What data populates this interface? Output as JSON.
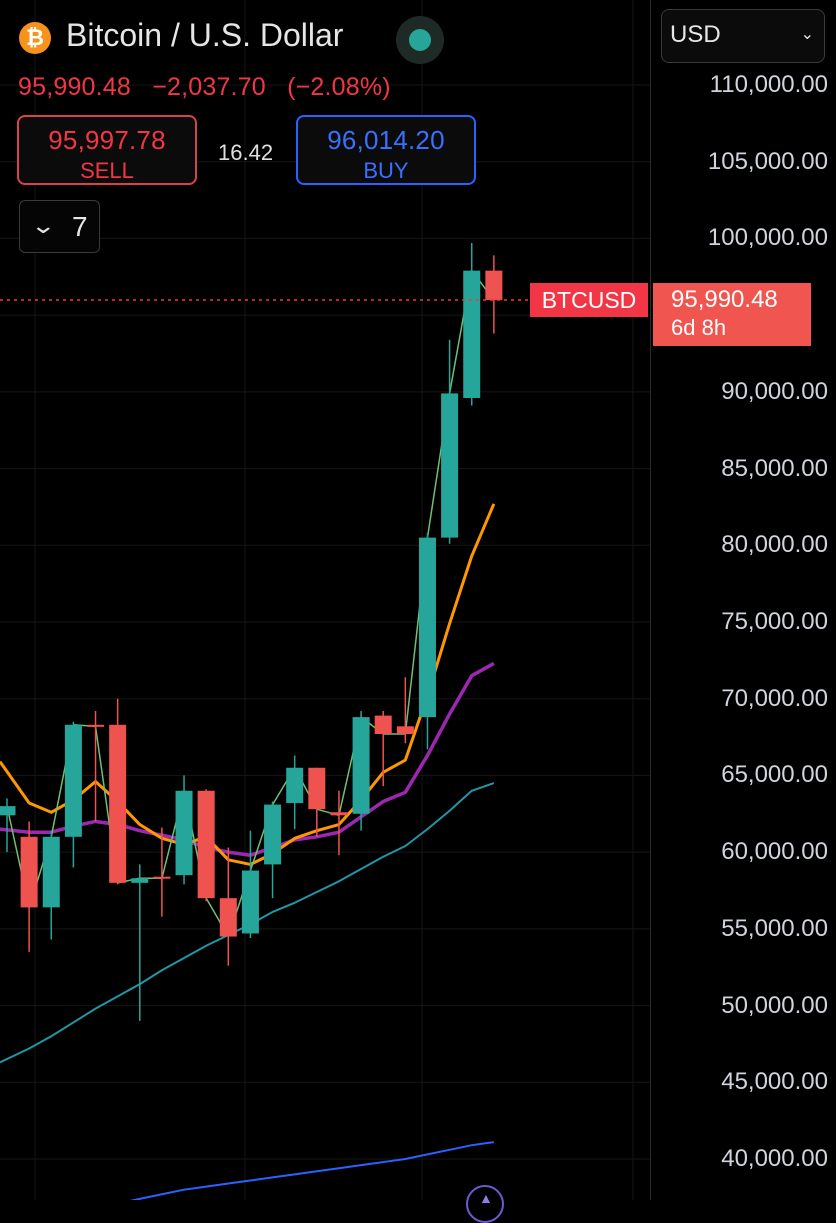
{
  "header": {
    "logo_glyph": "₿",
    "pair_title": "Bitcoin / U.S. Dollar",
    "last_price": "95,990.48",
    "change": "−2,037.70",
    "change_pct": "(−2.08%)",
    "status_color": "#26a69a"
  },
  "trade": {
    "sell_price": "95,997.78",
    "sell_label": "SELL",
    "spread": "16.42",
    "buy_price": "96,014.20",
    "buy_label": "BUY"
  },
  "interval": {
    "icon": "chevron-down-icon",
    "label": "7"
  },
  "currency": {
    "value": "USD",
    "icon": "chevron-down-icon"
  },
  "price_tag": {
    "symbol": "BTCUSD",
    "price": "95,990.48",
    "countdown": "6d 8h"
  },
  "colors": {
    "up": "#26a69a",
    "down": "#ef5350",
    "ma_fast": "#ff9800",
    "ma_mid": "#9c27b0",
    "ma_slow": "#2196a6",
    "ma_200": "#2962ff",
    "price_line": "#f23645"
  },
  "chart_data": {
    "type": "candlestick",
    "instrument": "BTCUSD",
    "y_ticks": [
      "110,000.00",
      "105,000.00",
      "100,000.00",
      "90,000.00",
      "85,000.00",
      "80,000.00",
      "75,000.00",
      "70,000.00",
      "65,000.00",
      "60,000.00",
      "55,000.00",
      "50,000.00",
      "45,000.00",
      "40,000.00"
    ],
    "ylim": [
      39000,
      112000
    ],
    "grid": true,
    "last_price": 95990.48,
    "candles": [
      {
        "o": 62400,
        "h": 63500,
        "l": 60000,
        "c": 63000
      },
      {
        "o": 61000,
        "h": 62000,
        "l": 53500,
        "c": 56400
      },
      {
        "o": 56400,
        "h": 61400,
        "l": 54300,
        "c": 61000
      },
      {
        "o": 61000,
        "h": 68500,
        "l": 59000,
        "c": 68300
      },
      {
        "o": 68300,
        "h": 69200,
        "l": 62000,
        "c": 68200
      },
      {
        "o": 68300,
        "h": 70000,
        "l": 57900,
        "c": 58000
      },
      {
        "o": 58000,
        "h": 59200,
        "l": 49000,
        "c": 58300
      },
      {
        "o": 58400,
        "h": 61600,
        "l": 55800,
        "c": 58300
      },
      {
        "o": 58500,
        "h": 65000,
        "l": 57900,
        "c": 64000
      },
      {
        "o": 64000,
        "h": 64100,
        "l": 56800,
        "c": 57000
      },
      {
        "o": 57000,
        "h": 60300,
        "l": 52600,
        "c": 54500
      },
      {
        "o": 54700,
        "h": 61400,
        "l": 54400,
        "c": 58800
      },
      {
        "o": 59200,
        "h": 63300,
        "l": 57000,
        "c": 63100
      },
      {
        "o": 63200,
        "h": 66300,
        "l": 61500,
        "c": 65500
      },
      {
        "o": 65500,
        "h": 65500,
        "l": 61000,
        "c": 62800
      },
      {
        "o": 62600,
        "h": 64000,
        "l": 59800,
        "c": 62400
      },
      {
        "o": 62500,
        "h": 69200,
        "l": 61400,
        "c": 68800
      },
      {
        "o": 68900,
        "h": 69200,
        "l": 64300,
        "c": 67700
      },
      {
        "o": 68200,
        "h": 71400,
        "l": 67100,
        "c": 67700
      },
      {
        "o": 68800,
        "h": 80800,
        "l": 66700,
        "c": 80500
      },
      {
        "o": 80500,
        "h": 93400,
        "l": 80100,
        "c": 89900
      },
      {
        "o": 89600,
        "h": 99700,
        "l": 89100,
        "c": 97900
      },
      {
        "o": 97900,
        "h": 98900,
        "l": 93800,
        "c": 95990
      }
    ],
    "ma_fast": [
      65900,
      63200,
      62600,
      63400,
      64600,
      63300,
      61800,
      60900,
      60500,
      61000,
      59500,
      59200,
      59900,
      60900,
      61400,
      61800,
      63400,
      65200,
      66000,
      70200,
      74900,
      79300,
      82700
    ],
    "ma_mid": [
      61500,
      61300,
      61300,
      61700,
      62000,
      61800,
      61400,
      61100,
      60800,
      60300,
      60000,
      59800,
      60300,
      60800,
      61000,
      61300,
      62300,
      63300,
      63900,
      66300,
      69000,
      71500,
      72300
    ],
    "ma_slow": [
      46300,
      47200,
      48000,
      48900,
      49800,
      50600,
      51400,
      52300,
      53100,
      53900,
      54600,
      55300,
      56100,
      56700,
      57400,
      58100,
      58900,
      59700,
      60400,
      61500,
      62700,
      64000,
      64500
    ],
    "ma_200": [
      35600,
      35900,
      36200,
      36500,
      36800,
      37100,
      37400,
      37700,
      38000,
      38200,
      38400,
      38600,
      38800,
      39000,
      39200,
      39400,
      39600,
      39800,
      40000,
      40300,
      40600,
      40900,
      41100
    ]
  }
}
